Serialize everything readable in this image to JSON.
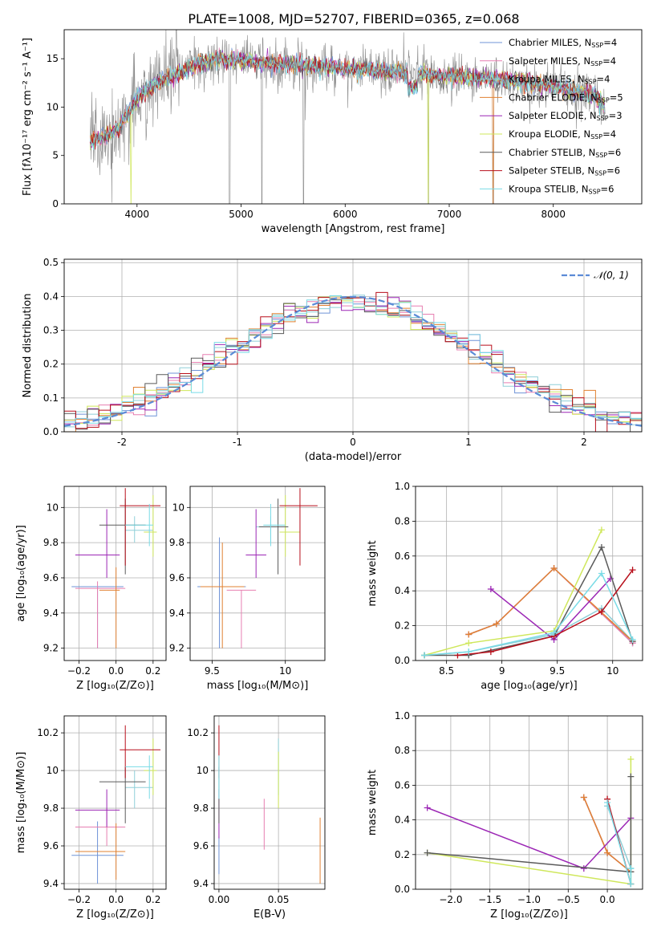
{
  "figure": {
    "title": "PLATE=1008, MJD=52707, FIBERID=0365, z=0.068"
  },
  "colors": {
    "model_colors": [
      "#6f93d7",
      "#e77fb1",
      "#8fcfd8",
      "#e08132",
      "#9c27b5",
      "#cfe75b",
      "#5a5a5a",
      "#b80f1b",
      "#79dbe6"
    ],
    "spectrum_data": "#8a8a8a",
    "gaussian": "#5b8bd6"
  },
  "legend_models": [
    {
      "label": "Chabrier MILES, N",
      "sub": "SSP",
      "suffix": "=4"
    },
    {
      "label": "Salpeter MILES, N",
      "sub": "SSP",
      "suffix": "=4"
    },
    {
      "label": "Kroupa MILES, N",
      "sub": "SSP",
      "suffix": "=4"
    },
    {
      "label": "Chabrier ELODIE, N",
      "sub": "SSP",
      "suffix": "=5"
    },
    {
      "label": "Salpeter ELODIE, N",
      "sub": "SSP",
      "suffix": "=3"
    },
    {
      "label": "Kroupa ELODIE, N",
      "sub": "SSP",
      "suffix": "=4"
    },
    {
      "label": "Chabrier STELIB, N",
      "sub": "SSP",
      "suffix": "=6"
    },
    {
      "label": "Salpeter STELIB, N",
      "sub": "SSP",
      "suffix": "=6"
    },
    {
      "label": "Kroupa STELIB, N",
      "sub": "SSP",
      "suffix": "=6"
    }
  ],
  "chart_data": [
    {
      "id": "spectrum",
      "type": "line",
      "xlabel": "wavelength [Angstrom, rest frame]",
      "ylabel": "Flux [fλ10⁻¹⁷ erg cm⁻² s⁻¹ A⁻¹]",
      "xlim": [
        3300,
        8850
      ],
      "ylim": [
        0,
        18
      ],
      "xticks": [
        4000,
        5000,
        6000,
        7000,
        8000
      ],
      "yticks": [
        0,
        5,
        10,
        15
      ],
      "grid": false,
      "legend_position": "right",
      "continuum_knots": {
        "wavelength": [
          3550,
          3700,
          3800,
          3900,
          4000,
          4200,
          4400,
          4600,
          4800,
          5000,
          5200,
          5500,
          6000,
          6500,
          7000,
          7500,
          8000,
          8400,
          8500
        ],
        "flux": [
          6.5,
          7.0,
          7.5,
          9.0,
          11.0,
          12.5,
          13.5,
          14.5,
          15.0,
          14.8,
          14.6,
          14.4,
          14.0,
          13.6,
          13.2,
          12.8,
          12.2,
          11.2,
          10.0
        ]
      }
    },
    {
      "id": "residual_histogram",
      "type": "line",
      "xlabel": "(data-model)/error",
      "ylabel": "Normed distribution",
      "xlim": [
        -2.5,
        2.5
      ],
      "ylim": [
        0,
        0.51
      ],
      "xticks": [
        -2,
        -1,
        0,
        1,
        2
      ],
      "yticks": [
        0.0,
        0.1,
        0.2,
        0.3,
        0.4,
        0.5
      ],
      "grid": true,
      "legend": [
        {
          "label": "𝒩(0, 1)",
          "style": "dashed"
        }
      ],
      "legend_position": "upper right",
      "bin_width": 0.1
    },
    {
      "id": "age_vs_Z",
      "type": "scatter",
      "xlabel": "Z [log₁₀(Z/Z⊙)]",
      "ylabel": "age  [log₁₀(age/yr)]",
      "xlim": [
        -0.28,
        0.27
      ],
      "ylim": [
        9.13,
        10.12
      ],
      "xticks": [
        -0.2,
        0.0,
        0.2
      ],
      "yticks": [
        9.2,
        9.4,
        9.6,
        9.8,
        10.0
      ],
      "xtick_labels": [
        "−0.2",
        "0.0",
        "0.2"
      ],
      "grid": true,
      "points": [
        {
          "x": -0.1,
          "xlo": -0.24,
          "xhi": 0.04,
          "y": 9.55,
          "ylo": 9.2,
          "yhi": 9.55
        },
        {
          "x": -0.1,
          "xlo": -0.22,
          "xhi": 0.05,
          "y": 9.54,
          "ylo": 9.2,
          "yhi": 9.58
        },
        {
          "x": 0.1,
          "xlo": 0.05,
          "xhi": 0.2,
          "y": 9.87,
          "ylo": 9.8,
          "yhi": 9.95
        },
        {
          "x": 0.0,
          "xlo": -0.09,
          "xhi": 0.02,
          "y": 9.53,
          "ylo": 9.2,
          "yhi": 9.66
        },
        {
          "x": -0.05,
          "xlo": -0.22,
          "xhi": 0.02,
          "y": 9.73,
          "ylo": 9.6,
          "yhi": 9.99
        },
        {
          "x": 0.2,
          "xlo": 0.15,
          "xhi": 0.22,
          "y": 9.86,
          "ylo": 9.72,
          "yhi": 10.07
        },
        {
          "x": 0.05,
          "xlo": -0.09,
          "xhi": 0.16,
          "y": 9.9,
          "ylo": 9.62,
          "yhi": 10.05
        },
        {
          "x": 0.05,
          "xlo": 0.02,
          "xhi": 0.24,
          "y": 10.01,
          "ylo": 9.67,
          "yhi": 10.11
        },
        {
          "x": 0.18,
          "xlo": 0.05,
          "xhi": 0.2,
          "y": 9.9,
          "ylo": 9.78,
          "yhi": 10.02
        }
      ]
    },
    {
      "id": "age_vs_mass",
      "type": "scatter",
      "xlabel": "mass [log₁₀(M/M⊙)]",
      "ylabel": "",
      "xlim": [
        9.35,
        10.27
      ],
      "ylim": [
        9.13,
        10.12
      ],
      "xticks": [
        9.5,
        10.0
      ],
      "yticks": [
        9.2,
        9.4,
        9.6,
        9.8,
        10.0
      ],
      "grid": true,
      "points": [
        {
          "x": 9.55,
          "xlo": 9.4,
          "xhi": 9.73,
          "y": 9.55,
          "ylo": 9.2,
          "yhi": 9.83
        },
        {
          "x": 9.7,
          "xlo": 9.6,
          "xhi": 9.8,
          "y": 9.53,
          "ylo": 9.2,
          "yhi": 9.53
        },
        {
          "x": 9.9,
          "xlo": 9.8,
          "xhi": 10.02,
          "y": 9.89,
          "ylo": 9.8,
          "yhi": 9.95
        },
        {
          "x": 9.57,
          "xlo": 9.42,
          "xhi": 9.72,
          "y": 9.55,
          "ylo": 9.2,
          "yhi": 9.8
        },
        {
          "x": 9.8,
          "xlo": 9.73,
          "xhi": 9.87,
          "y": 9.73,
          "ylo": 9.6,
          "yhi": 9.99
        },
        {
          "x": 10.0,
          "xlo": 9.96,
          "xhi": 10.1,
          "y": 9.86,
          "ylo": 9.72,
          "yhi": 10.07
        },
        {
          "x": 9.95,
          "xlo": 9.82,
          "xhi": 10.02,
          "y": 9.89,
          "ylo": 9.62,
          "yhi": 10.05
        },
        {
          "x": 10.1,
          "xlo": 9.96,
          "xhi": 10.22,
          "y": 10.01,
          "ylo": 9.67,
          "yhi": 10.11
        },
        {
          "x": 9.9,
          "xlo": 9.85,
          "xhi": 10.0,
          "y": 9.9,
          "ylo": 9.78,
          "yhi": 10.02
        }
      ]
    },
    {
      "id": "mass_weight_vs_age",
      "type": "line",
      "xlabel": "age  [log₁₀(age/yr)]",
      "ylabel": "mass weight",
      "xlim": [
        8.22,
        10.27
      ],
      "ylim": [
        0,
        1.0
      ],
      "xticks": [
        8.5,
        9.0,
        9.5,
        10.0
      ],
      "yticks": [
        0.0,
        0.2,
        0.4,
        0.6,
        0.8,
        1.0
      ],
      "grid": true,
      "series_points": [
        {
          "x": [
            8.7,
            8.95,
            9.47,
            10.18
          ],
          "y": [
            0.15,
            0.21,
            0.53,
            0.1
          ]
        },
        {
          "x": [
            8.7,
            8.95,
            9.47,
            10.18
          ],
          "y": [
            0.15,
            0.21,
            0.53,
            0.1
          ]
        },
        {
          "x": [
            8.3,
            8.7,
            9.47,
            9.9,
            10.18
          ],
          "y": [
            0.03,
            0.05,
            0.15,
            0.3,
            0.11
          ]
        },
        {
          "x": [
            8.7,
            8.95,
            9.47,
            10.18
          ],
          "y": [
            0.15,
            0.21,
            0.53,
            0.11
          ]
        },
        {
          "x": [
            8.9,
            9.47,
            9.98
          ],
          "y": [
            0.41,
            0.12,
            0.47
          ]
        },
        {
          "x": [
            8.3,
            8.7,
            9.47,
            9.9
          ],
          "y": [
            0.03,
            0.1,
            0.17,
            0.75
          ]
        },
        {
          "x": [
            8.3,
            8.7,
            9.47,
            9.9,
            10.18
          ],
          "y": [
            0.03,
            0.03,
            0.14,
            0.65,
            0.11
          ]
        },
        {
          "x": [
            8.6,
            8.9,
            9.47,
            9.9,
            10.18
          ],
          "y": [
            0.03,
            0.05,
            0.14,
            0.28,
            0.52
          ]
        },
        {
          "x": [
            8.3,
            8.7,
            9.47,
            9.9,
            10.18
          ],
          "y": [
            0.03,
            0.05,
            0.16,
            0.5,
            0.12
          ]
        }
      ]
    },
    {
      "id": "mass_vs_Z",
      "type": "scatter",
      "xlabel": "Z [log₁₀(Z/Z⊙)]",
      "ylabel": "mass [log₁₀(M/M⊙)]",
      "xlim": [
        -0.28,
        0.27
      ],
      "ylim": [
        9.37,
        10.29
      ],
      "xticks": [
        -0.2,
        0.0,
        0.2
      ],
      "yticks": [
        9.4,
        9.6,
        9.8,
        10.0,
        10.2
      ],
      "xtick_labels": [
        "−0.2",
        "0.0",
        "0.2"
      ],
      "grid": true,
      "points": [
        {
          "x": -0.1,
          "xlo": -0.24,
          "xhi": 0.04,
          "y": 9.55,
          "ylo": 9.4,
          "yhi": 9.73
        },
        {
          "x": -0.05,
          "xlo": -0.22,
          "xhi": 0.05,
          "y": 9.7,
          "ylo": 9.6,
          "yhi": 9.8
        },
        {
          "x": 0.1,
          "xlo": 0.05,
          "xhi": 0.2,
          "y": 9.91,
          "ylo": 9.8,
          "yhi": 10.0
        },
        {
          "x": 0.0,
          "xlo": -0.22,
          "xhi": 0.05,
          "y": 9.57,
          "ylo": 9.42,
          "yhi": 9.72
        },
        {
          "x": -0.05,
          "xlo": -0.22,
          "xhi": 0.02,
          "y": 9.79,
          "ylo": 9.7,
          "yhi": 9.9
        },
        {
          "x": 0.2,
          "xlo": 0.15,
          "xhi": 0.22,
          "y": 10.0,
          "ylo": 9.87,
          "yhi": 10.17
        },
        {
          "x": 0.05,
          "xlo": -0.09,
          "xhi": 0.16,
          "y": 9.94,
          "ylo": 9.72,
          "yhi": 10.02
        },
        {
          "x": 0.05,
          "xlo": 0.02,
          "xhi": 0.24,
          "y": 10.11,
          "ylo": 9.96,
          "yhi": 10.24
        },
        {
          "x": 0.18,
          "xlo": 0.05,
          "xhi": 0.2,
          "y": 10.02,
          "ylo": 9.85,
          "yhi": 10.08
        }
      ]
    },
    {
      "id": "mass_vs_EBV",
      "type": "scatter",
      "xlabel": "E(B-V)",
      "ylabel": "",
      "xlim": [
        -0.004,
        0.089
      ],
      "ylim": [
        9.37,
        10.29
      ],
      "xticks": [
        0.0,
        0.05
      ],
      "xtick_labels": [
        "0.00",
        "0.05"
      ],
      "yticks": [
        9.4,
        9.6,
        9.8,
        10.0,
        10.2
      ],
      "grid": true,
      "points": [
        {
          "x": 0.0,
          "ylo": 9.45,
          "yhi": 9.65
        },
        {
          "x": 0.038,
          "ylo": 9.58,
          "yhi": 9.85
        },
        {
          "x": 0.05,
          "ylo": 9.87,
          "yhi": 10.17
        },
        {
          "x": 0.085,
          "ylo": 9.4,
          "yhi": 9.75
        },
        {
          "x": 0.0,
          "ylo": 9.64,
          "yhi": 9.9
        },
        {
          "x": 0.05,
          "ylo": 9.8,
          "yhi": 10.1
        },
        {
          "x": 0.0,
          "ylo": 9.72,
          "yhi": 10.02
        },
        {
          "x": 0.0,
          "ylo": 9.96,
          "yhi": 10.24
        },
        {
          "x": 0.0,
          "ylo": 9.85,
          "yhi": 10.08
        }
      ]
    },
    {
      "id": "mass_weight_vs_Z",
      "type": "line",
      "xlabel": "Z [log₁₀(Z/Z⊙)]",
      "ylabel": "mass weight",
      "xlim": [
        -2.45,
        0.45
      ],
      "ylim": [
        0,
        1.0
      ],
      "xticks": [
        -2.0,
        -1.5,
        -1.0,
        -0.5,
        0.0
      ],
      "xtick_labels": [
        "−2.0",
        "−1.5",
        "−1.0",
        "−0.5",
        "0.0"
      ],
      "yticks": [
        0.0,
        0.2,
        0.4,
        0.6,
        0.8,
        1.0
      ],
      "grid": true,
      "series_points": [
        {
          "x": [
            -0.3,
            0.0,
            0.3
          ],
          "y": [
            0.53,
            0.21,
            0.1
          ]
        },
        {
          "x": [
            -0.3,
            0.0,
            0.3
          ],
          "y": [
            0.53,
            0.21,
            0.1
          ]
        },
        {
          "x": [
            0.0,
            0.3,
            0.3
          ],
          "y": [
            0.48,
            0.12,
            0.03
          ]
        },
        {
          "x": [
            -0.3,
            0.0,
            0.3
          ],
          "y": [
            0.53,
            0.21,
            0.1
          ]
        },
        {
          "x": [
            -2.3,
            -0.3,
            0.3
          ],
          "y": [
            0.47,
            0.12,
            0.41
          ]
        },
        {
          "x": [
            -2.3,
            0.3,
            0.3
          ],
          "y": [
            0.21,
            0.03,
            0.75
          ]
        },
        {
          "x": [
            -2.3,
            0.3,
            0.3
          ],
          "y": [
            0.21,
            0.1,
            0.65
          ]
        },
        {
          "x": [
            0.0,
            0.3
          ],
          "y": [
            0.52,
            0.03
          ]
        },
        {
          "x": [
            0.0,
            0.3,
            0.3
          ],
          "y": [
            0.5,
            0.03,
            0.12
          ]
        }
      ]
    }
  ]
}
